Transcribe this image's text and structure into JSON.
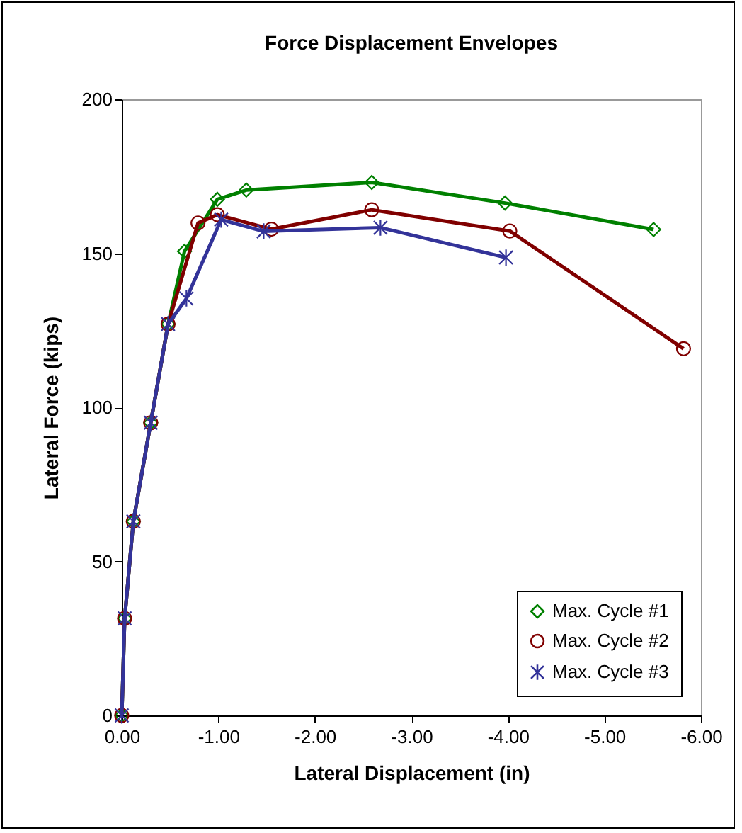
{
  "chart_data": {
    "type": "line",
    "title": "Force Displacement Envelopes",
    "xlabel": "Lateral Displacement (in)",
    "ylabel": "Lateral Force (kips)",
    "xlim": [
      0,
      -6
    ],
    "xticks": [
      {
        "value": 0,
        "label": "0.00"
      },
      {
        "value": -1,
        "label": "-1.00"
      },
      {
        "value": -2,
        "label": "-2.00"
      },
      {
        "value": -3,
        "label": "-3.00"
      },
      {
        "value": -4,
        "label": "-4.00"
      },
      {
        "value": -5,
        "label": "-5.00"
      },
      {
        "value": -6,
        "label": "-6.00"
      }
    ],
    "ylim": [
      0,
      200
    ],
    "yticks": [
      0,
      50,
      100,
      150,
      200
    ],
    "legend": "bottom right",
    "series": [
      {
        "name": "Max. Cycle #1",
        "color": "#008000",
        "marker": "diamond",
        "x": [
          0,
          -0.03,
          -0.12,
          -0.3,
          -0.48,
          -0.65,
          -0.99,
          -1.29,
          -2.59,
          -3.97,
          -5.51
        ],
        "values": [
          0,
          31.5,
          63,
          95,
          127,
          150.6,
          167.5,
          170.5,
          173,
          166.3,
          157.7
        ]
      },
      {
        "name": "Max. Cycle #2",
        "color": "#800000",
        "marker": "circle",
        "x": [
          0,
          -0.03,
          -0.12,
          -0.3,
          -0.48,
          -0.79,
          -0.99,
          -1.55,
          -2.59,
          -4.02,
          -5.82
        ],
        "values": [
          0,
          31.5,
          63,
          95,
          127,
          159.8,
          162.5,
          157.8,
          164.1,
          157.2,
          119
        ]
      },
      {
        "name": "Max. Cycle #3",
        "color": "#333399",
        "marker": "cross",
        "x": [
          0,
          -0.03,
          -0.12,
          -0.3,
          -0.48,
          -0.67,
          -1.03,
          -1.47,
          -2.68,
          -3.98
        ],
        "values": [
          0,
          31.5,
          63,
          95,
          127,
          135.3,
          160.9,
          157.1,
          158.3,
          148.6
        ]
      }
    ]
  }
}
